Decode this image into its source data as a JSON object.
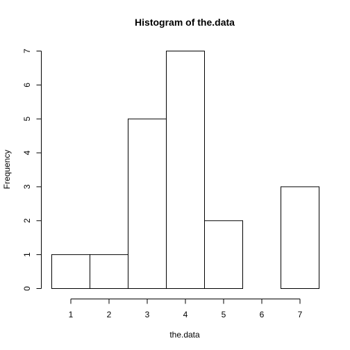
{
  "chart_data": {
    "type": "bar",
    "title": "Histogram of the.data",
    "xlabel": "the.data",
    "ylabel": "Frequency",
    "bins": [
      {
        "from": 0.5,
        "to": 1.5,
        "count": 1
      },
      {
        "from": 1.5,
        "to": 2.5,
        "count": 1
      },
      {
        "from": 2.5,
        "to": 3.5,
        "count": 5
      },
      {
        "from": 3.5,
        "to": 4.5,
        "count": 7
      },
      {
        "from": 4.5,
        "to": 5.5,
        "count": 2
      },
      {
        "from": 5.5,
        "to": 6.5,
        "count": 0
      },
      {
        "from": 6.5,
        "to": 7.5,
        "count": 3
      }
    ],
    "x_ticks": [
      1,
      2,
      3,
      4,
      5,
      6,
      7
    ],
    "y_ticks": [
      0,
      1,
      2,
      3,
      4,
      5,
      6,
      7
    ],
    "xlim": [
      0.5,
      7.5
    ],
    "ylim": [
      0,
      7
    ],
    "grid": false
  }
}
